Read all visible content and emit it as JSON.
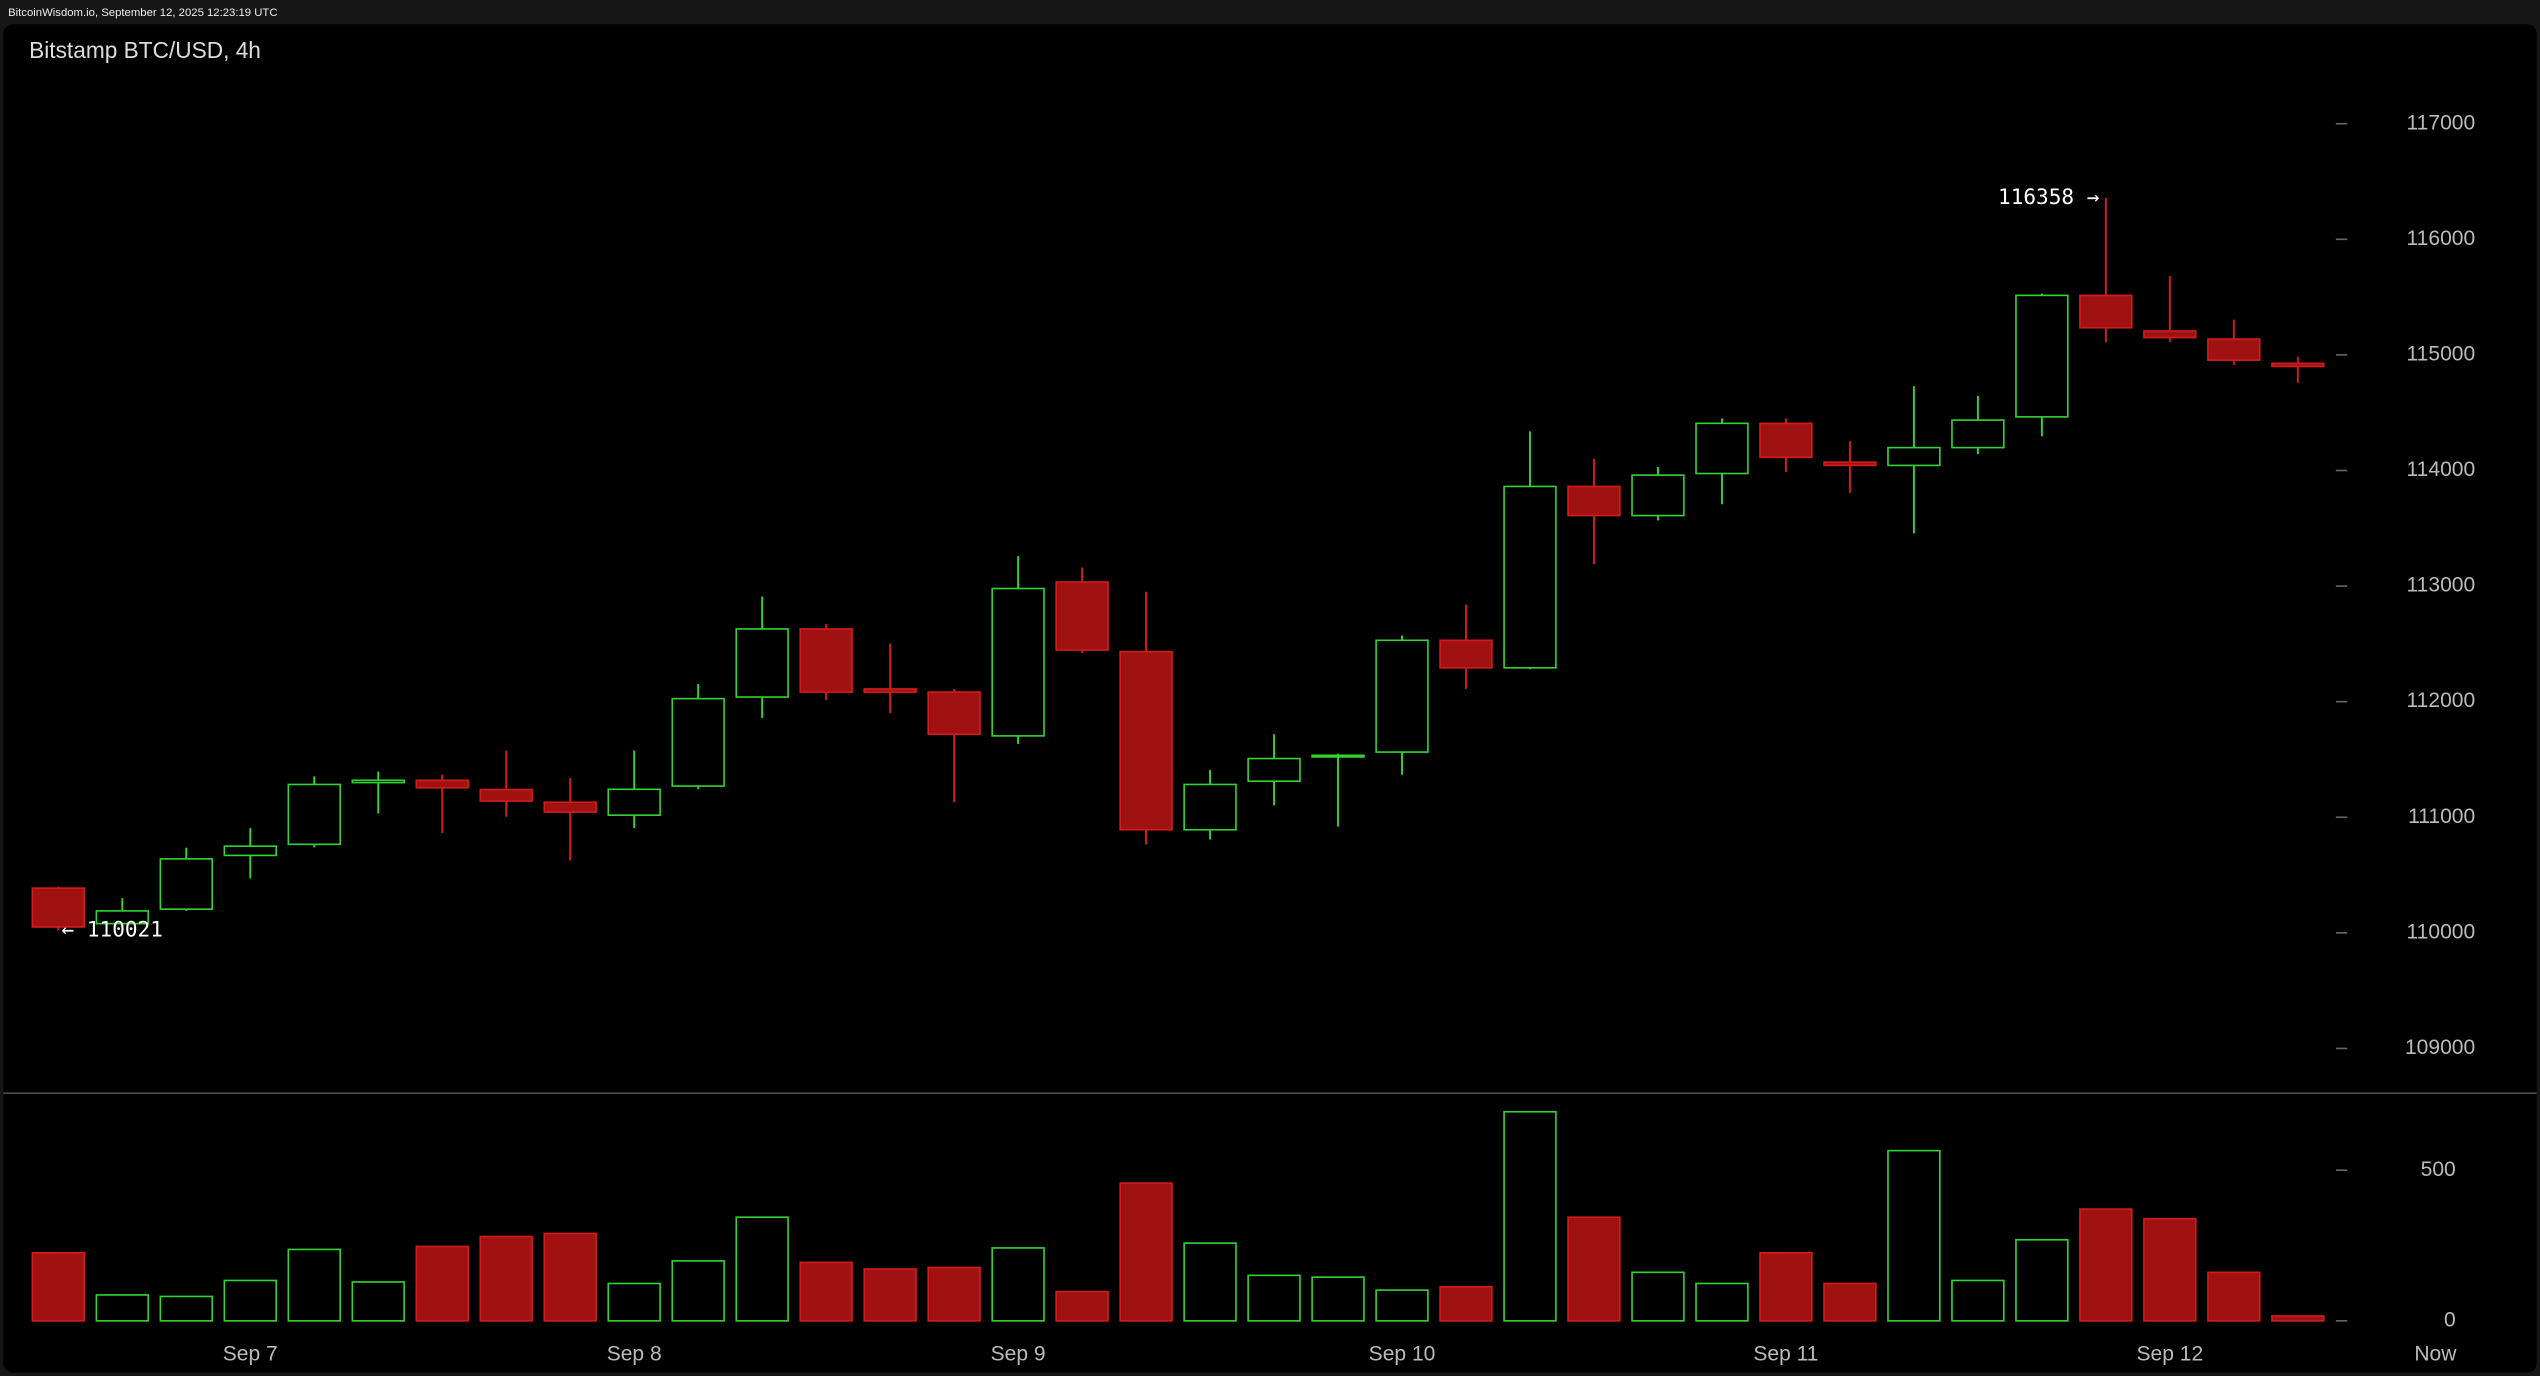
{
  "chart_data": {
    "type": "candlestick",
    "source_label": "BitcoinWisdom.io, September 12, 2025 12:23:19 UTC",
    "title": "Bitstamp BTC/USD, 4h",
    "categories": [
      null,
      null,
      null,
      "Sep 7",
      null,
      null,
      null,
      null,
      null,
      "Sep 8",
      null,
      null,
      null,
      null,
      null,
      "Sep 9",
      null,
      null,
      null,
      null,
      null,
      "Sep 10",
      null,
      null,
      null,
      null,
      null,
      "Sep 11",
      null,
      null,
      null,
      null,
      null,
      "Sep 12",
      null,
      null
    ],
    "now_label": "Now",
    "open": [
      110387,
      110080,
      110205,
      110670,
      110766,
      111300,
      111320,
      111240,
      111130,
      111018,
      111270,
      112040,
      112629,
      112110,
      112083,
      111704,
      113035,
      112433,
      110892,
      111312,
      111522,
      111564,
      112531,
      112293,
      113862,
      113610,
      113974,
      114408,
      114072,
      114044,
      114198,
      114464,
      115515,
      115207,
      115137,
      114927
    ],
    "high": [
      110400,
      110300,
      110737,
      110906,
      111354,
      111396,
      111370,
      111578,
      111340,
      111578,
      112153,
      112909,
      112671,
      112503,
      112110,
      113259,
      113161,
      112951,
      111410,
      111718,
      111550,
      112573,
      112839,
      114338,
      114100,
      114030,
      114450,
      114450,
      114254,
      114730,
      114646,
      115530,
      116358,
      115683,
      115305,
      114983
    ],
    "low": [
      110021,
      110050,
      110190,
      110471,
      110740,
      111032,
      110864,
      111004,
      110625,
      110906,
      111242,
      111858,
      112013,
      111900,
      111130,
      111634,
      112420,
      110766,
      110808,
      111102,
      110920,
      111368,
      112110,
      112280,
      113189,
      113568,
      113708,
      113988,
      113806,
      113456,
      114142,
      114296,
      115109,
      115110,
      114913,
      114758
    ],
    "close": [
      110051,
      110190,
      110640,
      110750,
      111284,
      111320,
      111255,
      111140,
      111045,
      111242,
      112026,
      112629,
      112083,
      112083,
      111718,
      112979,
      112447,
      110892,
      111284,
      111508,
      111536,
      112531,
      112293,
      113862,
      113610,
      113960,
      114408,
      114114,
      114044,
      114198,
      114436,
      115515,
      115235,
      115150,
      114955,
      114900
    ],
    "volume": [
      226,
      86,
      81,
      134,
      237,
      129,
      247,
      280,
      290,
      124,
      199,
      344,
      194,
      172,
      177,
      242,
      97,
      457,
      258,
      151,
      145,
      102,
      113,
      694,
      344,
      161,
      124,
      226,
      124,
      565,
      134,
      269,
      371,
      339,
      161,
      16
    ],
    "up_color": "#33d233",
    "down_color": "#a01212",
    "ylim": [
      108620,
      117860
    ],
    "yticks": [
      109000,
      110000,
      111000,
      112000,
      113000,
      114000,
      115000,
      116000,
      117000
    ],
    "volume_ylim": [
      -54,
      753
    ],
    "volume_yticks": [
      0,
      500
    ],
    "max_label": "116358 →",
    "min_label": "← 110021"
  }
}
